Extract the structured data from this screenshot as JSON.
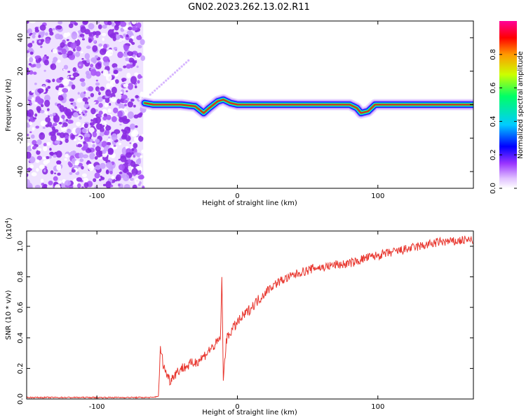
{
  "title": "GN02.2023.262.13.02.R11",
  "chart_data": [
    {
      "type": "heatmap",
      "xlabel": "Height of straight line (km)",
      "ylabel": "Frequency (Hz)",
      "xlim": [
        -150,
        168
      ],
      "ylim": [
        -50,
        50
      ],
      "x_ticks": [
        -100,
        0,
        100
      ],
      "y_ticks": [
        -40,
        -20,
        0,
        20,
        40
      ],
      "noise_region_x": [
        -150,
        -67
      ],
      "signal_track": [
        {
          "x": -66,
          "y": 1
        },
        {
          "x": -60,
          "y": 0
        },
        {
          "x": -40,
          "y": 0
        },
        {
          "x": -30,
          "y": -1
        },
        {
          "x": -24,
          "y": -5
        },
        {
          "x": -20,
          "y": -2
        },
        {
          "x": -14,
          "y": 2
        },
        {
          "x": -10,
          "y": 3
        },
        {
          "x": -5,
          "y": 1
        },
        {
          "x": 0,
          "y": 0
        },
        {
          "x": 80,
          "y": 0
        },
        {
          "x": 85,
          "y": -2
        },
        {
          "x": 88,
          "y": -5
        },
        {
          "x": 93,
          "y": -4
        },
        {
          "x": 98,
          "y": 0
        },
        {
          "x": 168,
          "y": 0
        }
      ],
      "colorbar": {
        "label": "Normalized spectral amplitude",
        "ticks": [
          "0.0",
          "0.2",
          "0.4",
          "0.6",
          "0.8"
        ],
        "colors": [
          "#ffffff",
          "#e0c0ff",
          "#9933ff",
          "#0000ff",
          "#00ccff",
          "#00ff66",
          "#ccff00",
          "#ff9900",
          "#ff0000",
          "#ff0099"
        ]
      }
    },
    {
      "type": "line",
      "xlabel": "Height of straight line (km)",
      "ylabel": "SNR (10 * v/v)",
      "scale_label": "(x10",
      "scale_exp": "4",
      "scale_close": ")",
      "xlim": [
        -150,
        168
      ],
      "ylim": [
        0,
        1.1
      ],
      "x_ticks": [
        -100,
        0,
        100
      ],
      "y_ticks": [
        "0.0",
        "0.2",
        "0.4",
        "0.6",
        "0.8",
        "1.0"
      ],
      "color": "#e8372f",
      "series": [
        {
          "values": [
            [
              -150,
              0.01
            ],
            [
              -120,
              0.01
            ],
            [
              -90,
              0.01
            ],
            [
              -60,
              0.01
            ],
            [
              -56,
              0.02
            ],
            [
              -55,
              0.33
            ],
            [
              -52,
              0.2
            ],
            [
              -48,
              0.12
            ],
            [
              -45,
              0.16
            ],
            [
              -40,
              0.2
            ],
            [
              -35,
              0.22
            ],
            [
              -30,
              0.24
            ],
            [
              -25,
              0.27
            ],
            [
              -20,
              0.32
            ],
            [
              -15,
              0.36
            ],
            [
              -12,
              0.4
            ],
            [
              -11,
              0.82
            ],
            [
              -10,
              0.12
            ],
            [
              -8,
              0.38
            ],
            [
              -5,
              0.44
            ],
            [
              0,
              0.5
            ],
            [
              5,
              0.55
            ],
            [
              10,
              0.6
            ],
            [
              15,
              0.65
            ],
            [
              20,
              0.7
            ],
            [
              25,
              0.74
            ],
            [
              30,
              0.77
            ],
            [
              35,
              0.79
            ],
            [
              40,
              0.81
            ],
            [
              45,
              0.83
            ],
            [
              50,
              0.84
            ],
            [
              55,
              0.86
            ],
            [
              60,
              0.86
            ],
            [
              65,
              0.87
            ],
            [
              70,
              0.88
            ],
            [
              75,
              0.88
            ],
            [
              80,
              0.89
            ],
            [
              85,
              0.9
            ],
            [
              90,
              0.92
            ],
            [
              95,
              0.93
            ],
            [
              100,
              0.94
            ],
            [
              105,
              0.95
            ],
            [
              110,
              0.96
            ],
            [
              115,
              0.97
            ],
            [
              120,
              0.98
            ],
            [
              125,
              0.99
            ],
            [
              130,
              1.0
            ],
            [
              135,
              1.01
            ],
            [
              140,
              1.02
            ],
            [
              145,
              1.03
            ],
            [
              150,
              1.03
            ],
            [
              155,
              1.03
            ],
            [
              160,
              1.04
            ],
            [
              168,
              1.04
            ]
          ]
        }
      ]
    }
  ]
}
